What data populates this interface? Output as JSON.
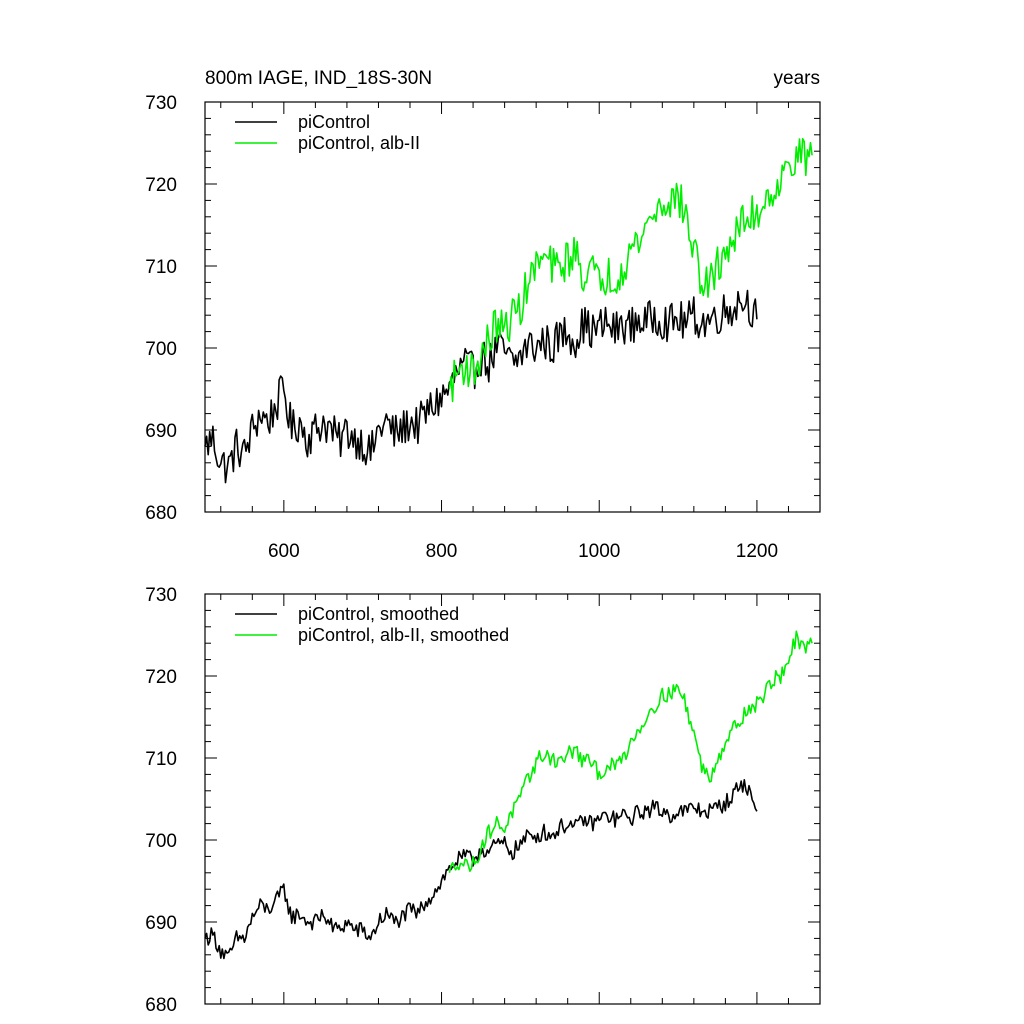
{
  "chart_data": [
    {
      "type": "line",
      "title": "800m IAGE, IND_18S-30N",
      "units": "years",
      "xlim": [
        500,
        1280
      ],
      "ylim": [
        680,
        730
      ],
      "xticks": [
        600,
        800,
        1000,
        1200
      ],
      "yticks": [
        680,
        690,
        700,
        710,
        720,
        730
      ],
      "show_x_tick_labels": true,
      "grid": false,
      "legend_position": "top-left",
      "series": [
        {
          "name": "piControl",
          "color": "#000000",
          "x": [
            500,
            510,
            520,
            530,
            540,
            550,
            560,
            570,
            580,
            590,
            600,
            610,
            620,
            630,
            640,
            650,
            660,
            670,
            680,
            690,
            700,
            710,
            720,
            730,
            740,
            750,
            760,
            770,
            780,
            790,
            800,
            810,
            820,
            830,
            840,
            850,
            860,
            870,
            880,
            890,
            900,
            910,
            920,
            930,
            940,
            950,
            960,
            970,
            980,
            990,
            1000,
            1010,
            1020,
            1030,
            1040,
            1050,
            1060,
            1070,
            1080,
            1090,
            1100,
            1110,
            1120,
            1130,
            1140,
            1150,
            1160,
            1170,
            1180,
            1190,
            1200
          ],
          "y": [
            688,
            689,
            686,
            685.5,
            688,
            687,
            690,
            692,
            691,
            693,
            695,
            690,
            691,
            689,
            690,
            691,
            690,
            688.5,
            690,
            689,
            688.5,
            687,
            690,
            691,
            689.5,
            690,
            691,
            690.5,
            692,
            693,
            694,
            695,
            697,
            698,
            697,
            699,
            698,
            700,
            699.5,
            698,
            699,
            700.5,
            700,
            701,
            700,
            701.5,
            702,
            701,
            703,
            702,
            702.5,
            703,
            702,
            703,
            702.5,
            703.5,
            703,
            704,
            703.5,
            703,
            703.5,
            703,
            704,
            703,
            703.5,
            704,
            704.5,
            705,
            706,
            705.5,
            703.5
          ]
        },
        {
          "name": "piControl, alb-II",
          "color": "#00ee00",
          "x": [
            810,
            820,
            830,
            840,
            850,
            860,
            870,
            880,
            890,
            900,
            910,
            920,
            930,
            940,
            950,
            960,
            970,
            980,
            990,
            1000,
            1010,
            1020,
            1030,
            1040,
            1050,
            1060,
            1070,
            1080,
            1090,
            1100,
            1110,
            1120,
            1130,
            1140,
            1150,
            1160,
            1170,
            1180,
            1190,
            1200,
            1210,
            1220,
            1230,
            1240,
            1250,
            1260,
            1270
          ],
          "y": [
            695,
            697,
            698,
            697,
            699,
            701,
            703,
            702,
            704,
            705,
            708,
            710,
            711,
            710,
            709.5,
            711,
            711.5,
            709,
            710,
            707.5,
            709,
            708.5,
            710,
            712,
            713,
            715,
            716.5,
            717.5,
            718,
            718.5,
            716,
            712,
            708,
            707.5,
            710,
            712,
            713,
            715,
            716,
            716.5,
            718,
            719.5,
            720,
            722,
            724,
            723,
            723.5
          ]
        }
      ]
    },
    {
      "type": "line",
      "title": "",
      "xlim": [
        500,
        1280
      ],
      "ylim": [
        680,
        730
      ],
      "xticks": [
        600,
        800,
        1000,
        1200
      ],
      "yticks": [
        680,
        690,
        700,
        710,
        720,
        730
      ],
      "show_x_tick_labels": false,
      "grid": false,
      "legend_position": "top-left",
      "series": [
        {
          "name": "piControl, smoothed",
          "color": "#000000",
          "x": [
            500,
            510,
            520,
            530,
            540,
            550,
            560,
            570,
            580,
            590,
            600,
            610,
            620,
            630,
            640,
            650,
            660,
            670,
            680,
            690,
            700,
            710,
            720,
            730,
            740,
            750,
            760,
            770,
            780,
            790,
            800,
            810,
            820,
            830,
            840,
            850,
            860,
            870,
            880,
            890,
            900,
            910,
            920,
            930,
            940,
            950,
            960,
            970,
            980,
            990,
            1000,
            1010,
            1020,
            1030,
            1040,
            1050,
            1060,
            1070,
            1080,
            1090,
            1100,
            1110,
            1120,
            1130,
            1140,
            1150,
            1160,
            1170,
            1180,
            1190,
            1200
          ],
          "y": [
            688,
            688.5,
            686.5,
            685.5,
            688,
            688,
            690.5,
            692,
            691.5,
            692.5,
            694,
            690.5,
            691,
            690,
            690,
            691,
            689.5,
            689,
            690,
            689,
            689,
            688,
            690,
            691,
            690,
            690.5,
            691.5,
            691,
            692.5,
            693.5,
            695,
            696.5,
            697.5,
            698,
            697.5,
            699,
            698.5,
            699.5,
            699.5,
            698.5,
            699.5,
            700.5,
            700.5,
            701,
            700.5,
            701.5,
            702,
            701.5,
            702.5,
            702,
            702.5,
            703,
            702.5,
            703,
            702.5,
            703.5,
            703.5,
            704,
            703.5,
            703,
            703.5,
            703.5,
            704,
            703.5,
            703.5,
            704,
            704.5,
            705.5,
            707,
            706,
            703.5
          ]
        },
        {
          "name": "piControl, alb-II, smoothed",
          "color": "#00ee00",
          "x": [
            810,
            820,
            830,
            840,
            850,
            860,
            870,
            880,
            890,
            900,
            910,
            920,
            930,
            940,
            950,
            960,
            970,
            980,
            990,
            1000,
            1010,
            1020,
            1030,
            1040,
            1050,
            1060,
            1070,
            1080,
            1090,
            1100,
            1110,
            1120,
            1130,
            1140,
            1150,
            1160,
            1170,
            1180,
            1190,
            1200,
            1210,
            1220,
            1230,
            1240,
            1250,
            1260,
            1270
          ],
          "y": [
            696,
            697.5,
            697,
            697,
            699,
            701,
            702,
            701.5,
            703.5,
            705,
            707.5,
            709.5,
            710.5,
            710,
            709.5,
            710.5,
            711,
            709.5,
            709.5,
            708,
            709,
            709,
            710,
            712,
            713.5,
            715,
            716.5,
            717.5,
            718,
            718.5,
            716.5,
            713,
            709,
            707.5,
            710,
            712,
            713.5,
            715,
            716,
            716.5,
            718,
            719.5,
            720,
            722,
            724.5,
            723,
            724
          ]
        }
      ]
    }
  ]
}
